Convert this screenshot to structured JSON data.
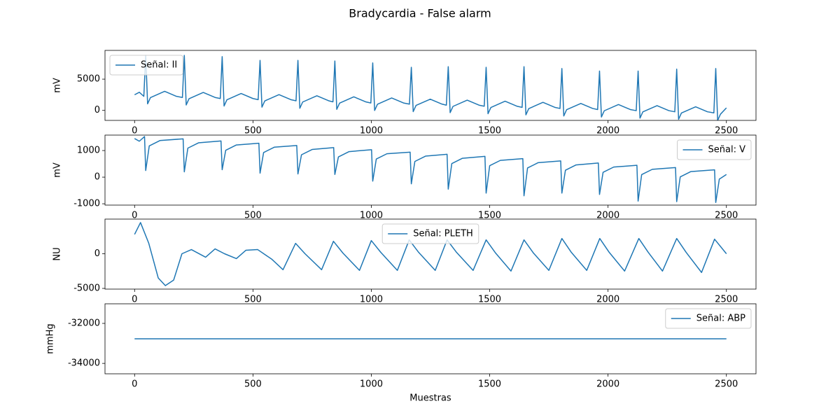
{
  "title": "Bradycardia - False alarm",
  "chart_data": [
    {
      "type": "line",
      "ylabel": "mV",
      "legend": "upper left",
      "xlim": [
        -125,
        2625
      ],
      "xticks": [
        0,
        500,
        1000,
        1500,
        2000,
        2500
      ],
      "ylim": [
        -1600,
        9600
      ],
      "yticks": [
        0,
        5000
      ],
      "x": [
        0,
        20,
        39,
        47,
        55,
        67,
        127,
        177,
        202,
        210,
        218,
        230,
        290,
        340,
        362,
        370,
        378,
        390,
        450,
        500,
        522,
        530,
        538,
        550,
        610,
        660,
        682,
        690,
        698,
        710,
        770,
        820,
        838,
        846,
        854,
        866,
        926,
        976,
        998,
        1006,
        1014,
        1026,
        1086,
        1136,
        1161,
        1169,
        1177,
        1189,
        1249,
        1299,
        1317,
        1325,
        1333,
        1345,
        1405,
        1455,
        1477,
        1485,
        1493,
        1505,
        1565,
        1615,
        1637,
        1645,
        1653,
        1665,
        1725,
        1775,
        1797,
        1805,
        1813,
        1825,
        1885,
        1935,
        1956,
        1964,
        1972,
        1984,
        2044,
        2094,
        2119,
        2127,
        2135,
        2147,
        2207,
        2257,
        2282,
        2290,
        2298,
        2310,
        2370,
        2420,
        2447,
        2455,
        2463,
        2475,
        2500
      ],
      "series": [
        {
          "name": "Señal: II",
          "color": "#1f77b4",
          "values": [
            2500,
            2900,
            2250,
            8800,
            1050,
            2050,
            3050,
            2250,
            2070,
            8800,
            870,
            1870,
            2870,
            2070,
            1900,
            8600,
            700,
            1700,
            2700,
            1900,
            1720,
            8000,
            520,
            1520,
            2520,
            1720,
            1540,
            8000,
            340,
            1340,
            2340,
            1540,
            1370,
            7900,
            170,
            1170,
            2170,
            1370,
            1190,
            7600,
            -10,
            990,
            1990,
            1190,
            1000,
            6900,
            -200,
            800,
            1800,
            1000,
            840,
            7000,
            -360,
            640,
            1640,
            840,
            670,
            6900,
            -530,
            470,
            1470,
            670,
            490,
            7000,
            -710,
            290,
            1290,
            490,
            310,
            6700,
            -890,
            110,
            1110,
            310,
            140,
            6300,
            -1060,
            -60,
            940,
            140,
            -40,
            6300,
            -1240,
            -240,
            760,
            -40,
            -220,
            6600,
            -1420,
            -420,
            580,
            -220,
            -400,
            6700,
            -1600,
            -600,
            400
          ]
        }
      ]
    },
    {
      "type": "line",
      "ylabel": "mV",
      "legend": "upper right",
      "xlim": [
        -125,
        2625
      ],
      "xticks": [
        0,
        500,
        1000,
        1500,
        2000,
        2500
      ],
      "ylim": [
        -1050,
        1580
      ],
      "yticks": [
        -1000,
        0,
        1000
      ],
      "x": [
        0,
        20,
        42,
        47,
        62,
        107,
        205,
        210,
        225,
        270,
        365,
        370,
        385,
        430,
        525,
        530,
        545,
        590,
        685,
        690,
        705,
        750,
        841,
        846,
        861,
        906,
        1001,
        1006,
        1021,
        1066,
        1164,
        1169,
        1184,
        1229,
        1320,
        1325,
        1340,
        1385,
        1480,
        1485,
        1500,
        1545,
        1640,
        1645,
        1660,
        1705,
        1800,
        1805,
        1820,
        1865,
        1959,
        1964,
        1979,
        2024,
        2122,
        2127,
        2142,
        2187,
        2285,
        2290,
        2305,
        2350,
        2450,
        2455,
        2470,
        2500
      ],
      "series": [
        {
          "name": "Señal: V",
          "color": "#1f77b4",
          "values": [
            1450,
            1350,
            1525,
            250,
            1175,
            1375,
            1440,
            200,
            1090,
            1290,
            1360,
            280,
            1010,
            1210,
            1275,
            150,
            925,
            1125,
            1190,
            120,
            840,
            1040,
            1110,
            100,
            760,
            960,
            1030,
            -150,
            680,
            880,
            940,
            -250,
            590,
            790,
            860,
            -450,
            510,
            710,
            780,
            -600,
            430,
            630,
            695,
            -700,
            345,
            545,
            610,
            -600,
            260,
            460,
            530,
            -650,
            180,
            380,
            445,
            -900,
            95,
            295,
            360,
            -920,
            10,
            210,
            275,
            -950,
            -75,
            100
          ]
        }
      ]
    },
    {
      "type": "line",
      "ylabel": "NU",
      "legend": "upper center",
      "xlim": [
        -125,
        2625
      ],
      "xticks": [
        0,
        500,
        1000,
        1500,
        2000,
        2500
      ],
      "ylim": [
        -5100,
        5000
      ],
      "yticks": [
        -5000,
        0
      ],
      "x": [
        0,
        25,
        60,
        100,
        130,
        165,
        200,
        240,
        300,
        340,
        380,
        430,
        470,
        520,
        580,
        627,
        680,
        720,
        790,
        840,
        880,
        950,
        1000,
        1040,
        1110,
        1160,
        1200,
        1270,
        1320,
        1360,
        1430,
        1485,
        1525,
        1590,
        1645,
        1685,
        1750,
        1805,
        1845,
        1910,
        1965,
        2005,
        2070,
        2130,
        2170,
        2230,
        2290,
        2330,
        2395,
        2450,
        2500
      ],
      "series": [
        {
          "name": "Señal: PLETH",
          "color": "#1f77b4",
          "values": [
            2800,
            4500,
            1500,
            -3500,
            -4600,
            -3800,
            0,
            600,
            -500,
            700,
            0,
            -700,
            500,
            600,
            -800,
            -2300,
            1500,
            0,
            -2300,
            1800,
            100,
            -2400,
            1900,
            200,
            -2400,
            2000,
            200,
            -2400,
            2000,
            200,
            -2400,
            2000,
            100,
            -2500,
            2000,
            100,
            -2400,
            2200,
            200,
            -2400,
            2200,
            200,
            -2500,
            2200,
            200,
            -2500,
            2200,
            200,
            -2700,
            2100,
            0
          ]
        }
      ]
    },
    {
      "type": "line",
      "ylabel": "mmHg",
      "xlabel": "Muestras",
      "legend": "upper right",
      "xlim": [
        -125,
        2625
      ],
      "xticks": [
        0,
        500,
        1000,
        1500,
        2000,
        2500
      ],
      "ylim": [
        -34520,
        -31020
      ],
      "yticks": [
        -34000,
        -32000
      ],
      "x": [
        0,
        2500
      ],
      "series": [
        {
          "name": "Señal: ABP",
          "color": "#1f77b4",
          "values": [
            -32768,
            -32768
          ]
        }
      ]
    }
  ]
}
